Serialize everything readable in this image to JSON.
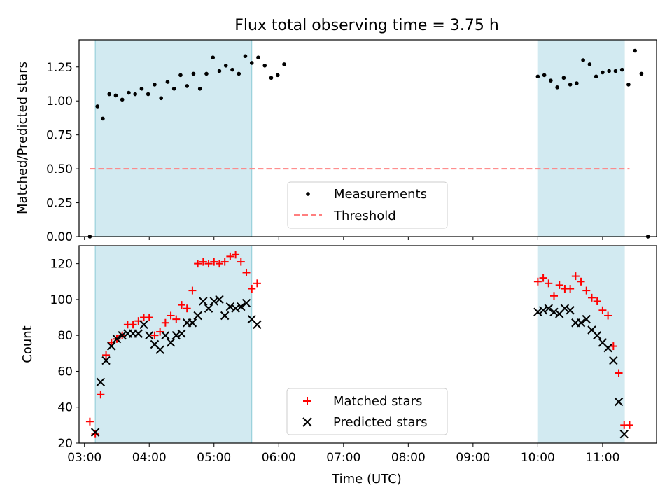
{
  "chart_data": [
    {
      "type": "scatter",
      "title": "Flux total observing time = 3.75 h",
      "xlabel": "",
      "ylabel": "Matched/Predicted stars",
      "xlim": [
        "02:55",
        "11:50"
      ],
      "ylim": [
        0,
        1.45
      ],
      "yticks": [
        0.0,
        0.25,
        0.5,
        0.75,
        1.0,
        1.25
      ],
      "ytick_labels": [
        "0.00",
        "0.25",
        "0.50",
        "0.75",
        "1.00",
        "1.25"
      ],
      "legend": {
        "placement": "lower-center",
        "entries": [
          "Measurements",
          "Threshold"
        ]
      },
      "shaded_intervals": [
        [
          "03:10",
          "05:35"
        ],
        [
          "10:00",
          "11:20"
        ]
      ],
      "threshold": {
        "name": "Threshold",
        "y": 0.5,
        "x_range": [
          "03:05",
          "11:25"
        ],
        "color": "#ff7f7f",
        "style": "dashed"
      },
      "series": [
        {
          "name": "Measurements",
          "marker": "dot",
          "color": "#000000",
          "points": [
            [
              "03:05",
              0.0
            ],
            [
              "03:12",
              0.96
            ],
            [
              "03:17",
              0.87
            ],
            [
              "03:23",
              1.05
            ],
            [
              "03:29",
              1.04
            ],
            [
              "03:35",
              1.01
            ],
            [
              "03:41",
              1.06
            ],
            [
              "03:47",
              1.05
            ],
            [
              "03:53",
              1.09
            ],
            [
              "03:59",
              1.05
            ],
            [
              "04:05",
              1.12
            ],
            [
              "04:11",
              1.02
            ],
            [
              "04:17",
              1.14
            ],
            [
              "04:23",
              1.09
            ],
            [
              "04:29",
              1.19
            ],
            [
              "04:35",
              1.11
            ],
            [
              "04:41",
              1.2
            ],
            [
              "04:47",
              1.09
            ],
            [
              "04:53",
              1.2
            ],
            [
              "04:59",
              1.32
            ],
            [
              "05:05",
              1.22
            ],
            [
              "05:11",
              1.26
            ],
            [
              "05:17",
              1.23
            ],
            [
              "05:23",
              1.2
            ],
            [
              "05:29",
              1.33
            ],
            [
              "05:35",
              1.28
            ],
            [
              "05:41",
              1.32
            ],
            [
              "05:47",
              1.26
            ],
            [
              "05:53",
              1.17
            ],
            [
              "05:59",
              1.19
            ],
            [
              "06:05",
              1.27
            ],
            [
              "10:00",
              1.18
            ],
            [
              "10:06",
              1.19
            ],
            [
              "10:12",
              1.15
            ],
            [
              "10:18",
              1.1
            ],
            [
              "10:24",
              1.17
            ],
            [
              "10:30",
              1.12
            ],
            [
              "10:36",
              1.13
            ],
            [
              "10:42",
              1.3
            ],
            [
              "10:48",
              1.27
            ],
            [
              "10:54",
              1.18
            ],
            [
              "11:00",
              1.21
            ],
            [
              "11:06",
              1.22
            ],
            [
              "11:12",
              1.22
            ],
            [
              "11:18",
              1.23
            ],
            [
              "11:24",
              1.12
            ],
            [
              "11:30",
              1.37
            ],
            [
              "11:36",
              1.2
            ],
            [
              "11:42",
              0.0
            ]
          ]
        }
      ]
    },
    {
      "type": "scatter",
      "title": "",
      "xlabel": "Time (UTC)",
      "ylabel": "Count",
      "xlim": [
        "02:55",
        "11:50"
      ],
      "ylim": [
        20,
        130
      ],
      "yticks": [
        20,
        40,
        60,
        80,
        100,
        120
      ],
      "xticks": [
        "03:00",
        "04:00",
        "05:00",
        "06:00",
        "07:00",
        "08:00",
        "09:00",
        "10:00",
        "11:00"
      ],
      "legend": {
        "placement": "lower-center",
        "entries": [
          "Matched stars",
          "Predicted stars"
        ]
      },
      "shaded_intervals": [
        [
          "03:10",
          "05:35"
        ],
        [
          "10:00",
          "11:20"
        ]
      ],
      "series": [
        {
          "name": "Matched stars",
          "marker": "plus",
          "color": "#ff0000",
          "points": [
            [
              "03:05",
              32
            ],
            [
              "03:10",
              25
            ],
            [
              "03:15",
              47
            ],
            [
              "03:20",
              69
            ],
            [
              "03:25",
              76
            ],
            [
              "03:30",
              78
            ],
            [
              "03:35",
              80
            ],
            [
              "03:40",
              86
            ],
            [
              "03:45",
              86
            ],
            [
              "03:50",
              88
            ],
            [
              "03:55",
              90
            ],
            [
              "04:00",
              90
            ],
            [
              "04:05",
              80
            ],
            [
              "04:10",
              82
            ],
            [
              "04:15",
              87
            ],
            [
              "04:20",
              91
            ],
            [
              "04:25",
              89
            ],
            [
              "04:30",
              97
            ],
            [
              "04:35",
              95
            ],
            [
              "04:40",
              105
            ],
            [
              "04:45",
              120
            ],
            [
              "04:50",
              121
            ],
            [
              "04:55",
              120
            ],
            [
              "05:00",
              121
            ],
            [
              "05:05",
              120
            ],
            [
              "05:10",
              121
            ],
            [
              "05:15",
              124
            ],
            [
              "05:20",
              125
            ],
            [
              "05:25",
              121
            ],
            [
              "05:30",
              115
            ],
            [
              "05:35",
              106
            ],
            [
              "05:40",
              109
            ],
            [
              "10:00",
              110
            ],
            [
              "10:05",
              112
            ],
            [
              "10:10",
              109
            ],
            [
              "10:15",
              102
            ],
            [
              "10:20",
              108
            ],
            [
              "10:25",
              106
            ],
            [
              "10:30",
              106
            ],
            [
              "10:35",
              113
            ],
            [
              "10:40",
              110
            ],
            [
              "10:45",
              105
            ],
            [
              "10:50",
              101
            ],
            [
              "10:55",
              99
            ],
            [
              "11:00",
              94
            ],
            [
              "11:05",
              91
            ],
            [
              "11:10",
              74
            ],
            [
              "11:15",
              59
            ],
            [
              "11:20",
              30
            ],
            [
              "11:25",
              30
            ]
          ]
        },
        {
          "name": "Predicted stars",
          "marker": "x",
          "color": "#000000",
          "points": [
            [
              "03:10",
              26
            ],
            [
              "03:15",
              54
            ],
            [
              "03:20",
              66
            ],
            [
              "03:25",
              74
            ],
            [
              "03:30",
              78
            ],
            [
              "03:35",
              80
            ],
            [
              "03:40",
              81
            ],
            [
              "03:45",
              81
            ],
            [
              "03:50",
              81
            ],
            [
              "03:55",
              86
            ],
            [
              "04:00",
              80
            ],
            [
              "04:05",
              75
            ],
            [
              "04:10",
              72
            ],
            [
              "04:15",
              80
            ],
            [
              "04:20",
              76
            ],
            [
              "04:25",
              80
            ],
            [
              "04:30",
              81
            ],
            [
              "04:35",
              87
            ],
            [
              "04:40",
              87
            ],
            [
              "04:45",
              91
            ],
            [
              "04:50",
              99
            ],
            [
              "04:55",
              95
            ],
            [
              "05:00",
              99
            ],
            [
              "05:05",
              100
            ],
            [
              "05:10",
              91
            ],
            [
              "05:15",
              96
            ],
            [
              "05:20",
              95
            ],
            [
              "05:25",
              96
            ],
            [
              "05:30",
              98
            ],
            [
              "05:35",
              89
            ],
            [
              "05:40",
              86
            ],
            [
              "10:00",
              93
            ],
            [
              "10:05",
              94
            ],
            [
              "10:10",
              95
            ],
            [
              "10:15",
              93
            ],
            [
              "10:20",
              92
            ],
            [
              "10:25",
              95
            ],
            [
              "10:30",
              94
            ],
            [
              "10:35",
              87
            ],
            [
              "10:40",
              87
            ],
            [
              "10:45",
              89
            ],
            [
              "10:50",
              83
            ],
            [
              "10:55",
              80
            ],
            [
              "11:00",
              76
            ],
            [
              "11:05",
              73
            ],
            [
              "11:10",
              66
            ],
            [
              "11:15",
              43
            ],
            [
              "11:20",
              25
            ]
          ]
        }
      ]
    }
  ],
  "colors": {
    "shade_fill": "#add8e6",
    "shade_edge": "#8ccbd6",
    "threshold": "#ff7f7f",
    "matched": "#ff0000",
    "predicted": "#000000",
    "measurement": "#000000"
  }
}
